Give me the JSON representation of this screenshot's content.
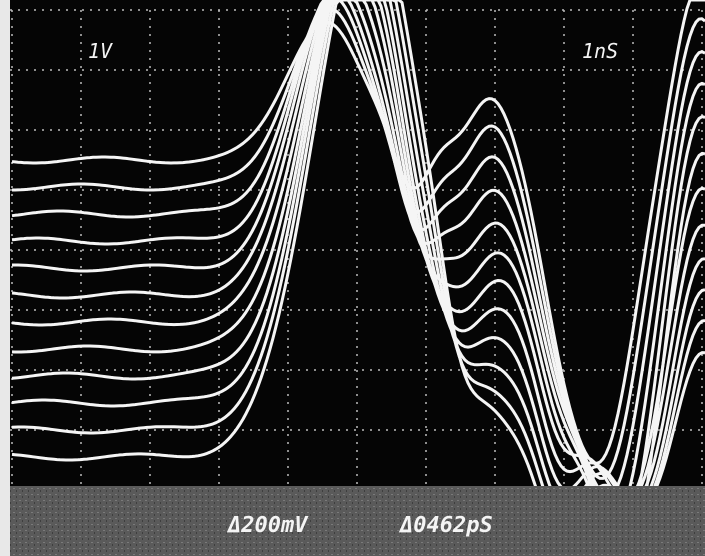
{
  "screen": {
    "volts_per_div": "1V",
    "time_per_div": "1nS"
  },
  "readout": {
    "delta_v": "Δ200mV",
    "delta_t": "Δ0462pS"
  }
}
